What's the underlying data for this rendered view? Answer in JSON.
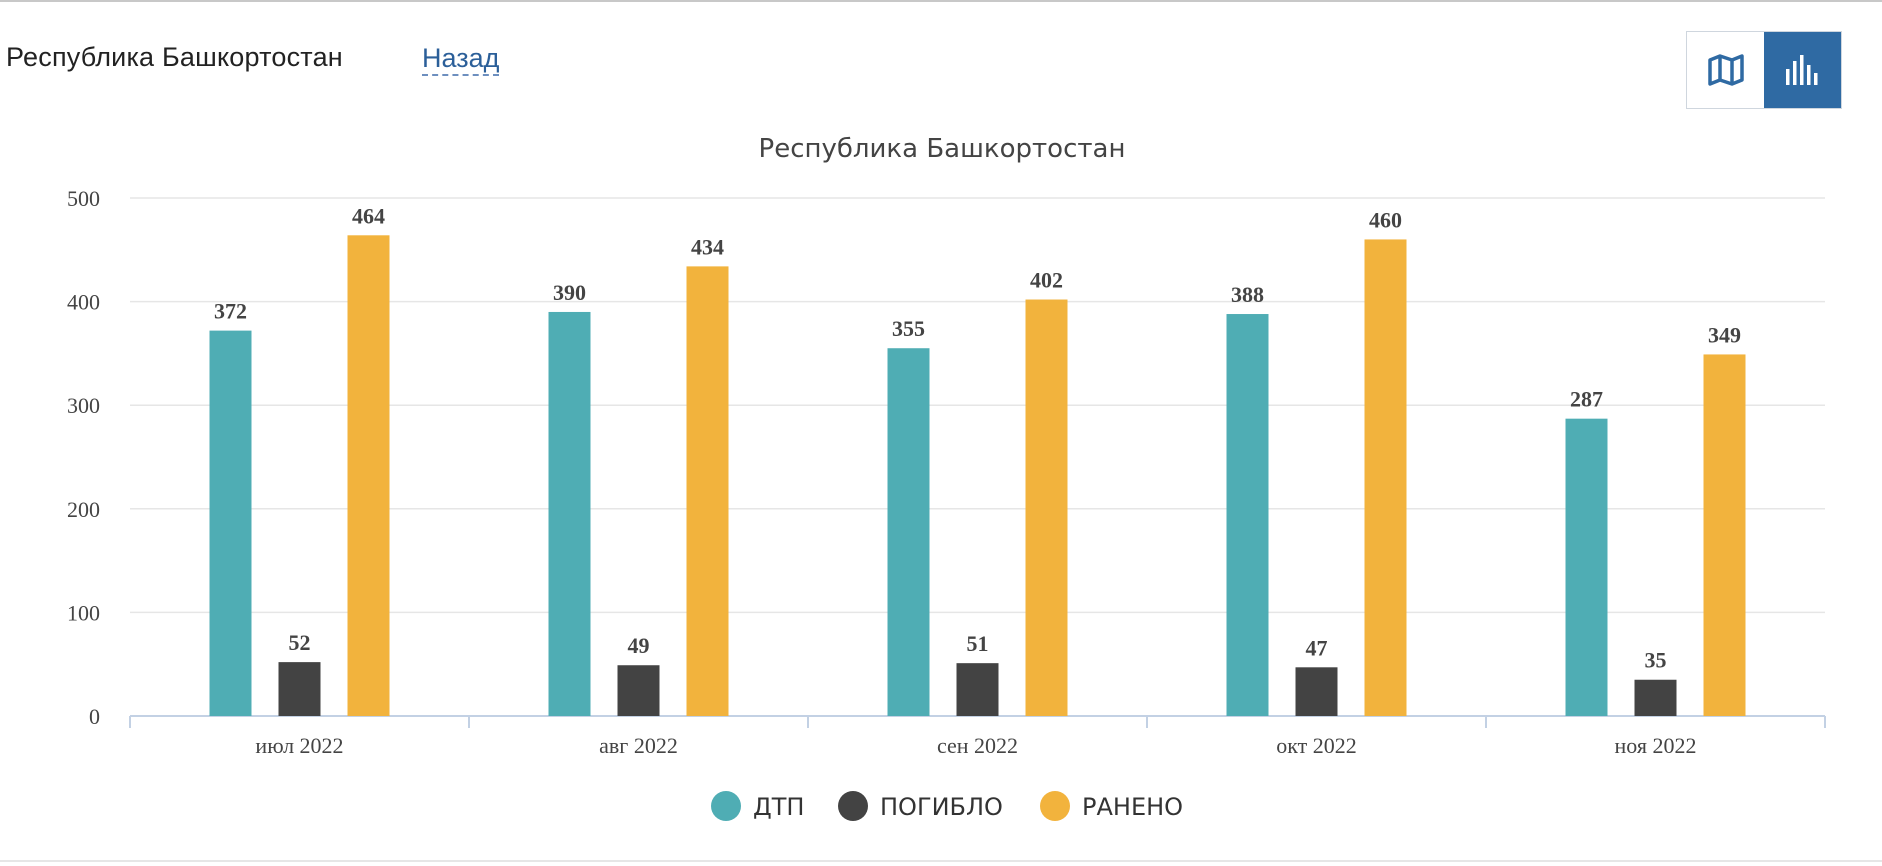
{
  "header": {
    "title": "Республика Башкортостан",
    "back_label": "Назад"
  },
  "toolbar": {
    "map_view_icon": "map-icon",
    "chart_view_icon": "bar-chart-icon",
    "active_view": "chart",
    "active_color": "#2f6aa3"
  },
  "chart_data": {
    "type": "bar",
    "title": "Республика Башкортостан",
    "categories": [
      "июл 2022",
      "авг 2022",
      "сен 2022",
      "окт 2022",
      "ноя 2022"
    ],
    "series": [
      {
        "name": "ДТП",
        "values": [
          372,
          390,
          355,
          388,
          287
        ],
        "color": "#4fadb4"
      },
      {
        "name": "ПОГИБЛО",
        "values": [
          52,
          49,
          51,
          47,
          35
        ],
        "color": "#434343"
      },
      {
        "name": "РАНЕНО",
        "values": [
          464,
          434,
          402,
          460,
          349
        ],
        "color": "#f2b33d"
      }
    ],
    "yticks": [
      0,
      100,
      200,
      300,
      400,
      500
    ],
    "ylim": [
      0,
      500
    ],
    "xlabel": "",
    "ylabel": "",
    "grid": true,
    "data_labels": true,
    "legend_position": "bottom-center"
  }
}
